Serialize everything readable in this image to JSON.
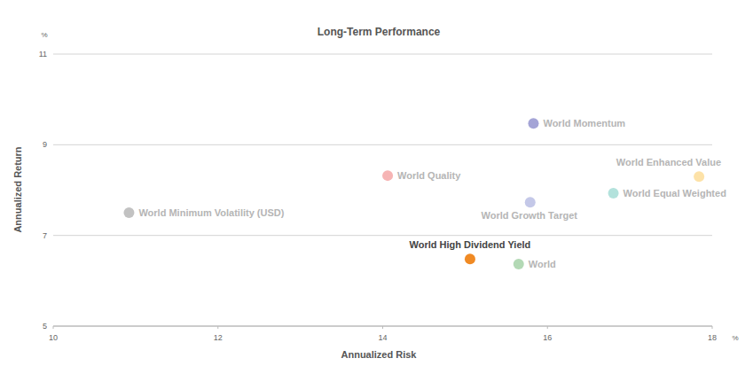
{
  "chart_data": {
    "type": "scatter",
    "title": "Long-Term Performance",
    "x_label": "Annualized Risk",
    "y_label": "Annualized Return",
    "x_unit": "%",
    "y_unit": "%",
    "xlim": [
      10,
      18
    ],
    "xticks": [
      10,
      12,
      14,
      16,
      18
    ],
    "ylim": [
      5,
      11
    ],
    "yticks": [
      5,
      7,
      9,
      11
    ],
    "grid": true,
    "series": [
      {
        "name": "World Momentum",
        "color": "#a4a4d6",
        "x": [
          15.83
        ],
        "values": [
          9.47
        ]
      },
      {
        "name": "World Quality",
        "color": "#f6b4b4",
        "x": [
          14.06
        ],
        "values": [
          8.32
        ]
      },
      {
        "name": "World Enhanced Value",
        "color": "#fde2a8",
        "x": [
          17.84
        ],
        "values": [
          8.3
        ]
      },
      {
        "name": "World Equal Weighted",
        "color": "#b3e2dc",
        "x": [
          16.8
        ],
        "values": [
          7.93
        ]
      },
      {
        "name": "World Growth Target",
        "color": "#c4c8e8",
        "x": [
          15.79
        ],
        "values": [
          7.73
        ]
      },
      {
        "name": "World Minimum Volatility (USD)",
        "color": "#c2c2c2",
        "x": [
          10.92
        ],
        "values": [
          7.5
        ]
      },
      {
        "name": "World High Dividend Yield",
        "color": "#f08a24",
        "x": [
          15.06
        ],
        "values": [
          6.48
        ]
      },
      {
        "name": "World",
        "color": "#b3d9b5",
        "x": [
          15.65
        ],
        "values": [
          6.37
        ]
      }
    ]
  }
}
